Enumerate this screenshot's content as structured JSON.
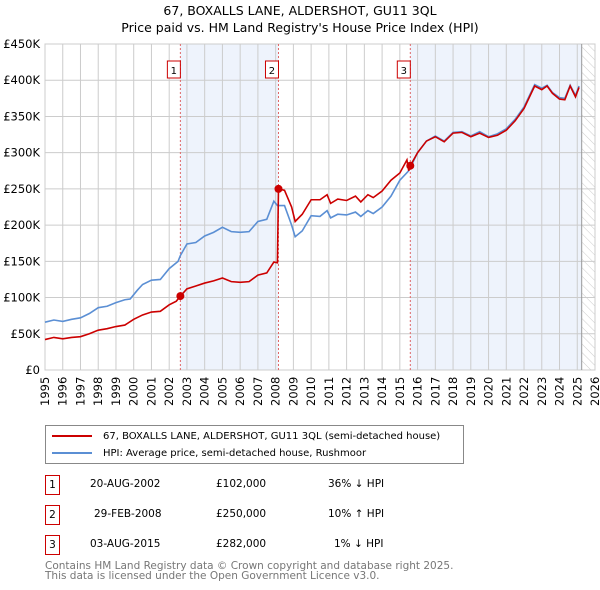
{
  "chart_data": {
    "type": "line",
    "title": "67, BOXALLS LANE, ALDERSHOT, GU11 3QL",
    "subtitle": "Price paid vs. HM Land Registry's House Price Index (HPI)",
    "xlim": [
      1995,
      2026
    ],
    "ylim": [
      0,
      450000
    ],
    "x_ticks": [
      "1995",
      "1996",
      "1997",
      "1998",
      "1999",
      "2000",
      "2001",
      "2002",
      "2003",
      "2004",
      "2005",
      "2006",
      "2007",
      "2008",
      "2009",
      "2010",
      "2011",
      "2012",
      "2013",
      "2014",
      "2015",
      "2016",
      "2017",
      "2018",
      "2019",
      "2020",
      "2021",
      "2022",
      "2023",
      "2024",
      "2025",
      "2026"
    ],
    "y_ticks": [
      "£0",
      "£50K",
      "£100K",
      "£150K",
      "£200K",
      "£250K",
      "£300K",
      "£350K",
      "£400K",
      "£450K"
    ],
    "grid": true,
    "series": [
      {
        "name": "67, BOXALLS LANE, ALDERSHOT, GU11 3QL (semi-detached house)",
        "color": "#cc0000",
        "points": [
          [
            1995,
            42000
          ],
          [
            1995.5,
            45000
          ],
          [
            1996,
            43000
          ],
          [
            1996.5,
            45000
          ],
          [
            1997,
            46000
          ],
          [
            1997.5,
            50000
          ],
          [
            1998,
            55000
          ],
          [
            1998.5,
            57000
          ],
          [
            1999,
            60000
          ],
          [
            1999.5,
            62000
          ],
          [
            2000,
            70000
          ],
          [
            2000.5,
            76000
          ],
          [
            2001,
            80000
          ],
          [
            2001.5,
            81000
          ],
          [
            2002,
            90000
          ],
          [
            2002.4,
            95000
          ],
          [
            2002.63,
            102000
          ],
          [
            2003,
            112000
          ],
          [
            2003.5,
            116000
          ],
          [
            2004,
            120000
          ],
          [
            2004.5,
            123000
          ],
          [
            2005,
            127000
          ],
          [
            2005.5,
            122000
          ],
          [
            2006,
            121000
          ],
          [
            2006.5,
            122000
          ],
          [
            2007,
            131000
          ],
          [
            2007.5,
            134000
          ],
          [
            2007.9,
            149000
          ],
          [
            2008.1,
            148000
          ],
          [
            2008.16,
            250000
          ],
          [
            2008.5,
            248000
          ],
          [
            2008.9,
            225000
          ],
          [
            2009.1,
            205000
          ],
          [
            2009.5,
            215000
          ],
          [
            2010,
            235000
          ],
          [
            2010.5,
            235000
          ],
          [
            2010.9,
            242000
          ],
          [
            2011.1,
            230000
          ],
          [
            2011.5,
            236000
          ],
          [
            2012,
            234000
          ],
          [
            2012.5,
            240000
          ],
          [
            2012.8,
            232000
          ],
          [
            2013.2,
            242000
          ],
          [
            2013.5,
            238000
          ],
          [
            2014,
            247000
          ],
          [
            2014.5,
            262000
          ],
          [
            2015,
            272000
          ],
          [
            2015.4,
            290000
          ],
          [
            2015.5,
            275000
          ],
          [
            2015.59,
            282000
          ],
          [
            2016,
            300000
          ],
          [
            2016.5,
            316000
          ],
          [
            2017,
            322000
          ],
          [
            2017.5,
            315000
          ],
          [
            2018,
            327000
          ],
          [
            2018.5,
            328000
          ],
          [
            2019,
            322000
          ],
          [
            2019.5,
            327000
          ],
          [
            2020,
            321000
          ],
          [
            2020.5,
            324000
          ],
          [
            2021,
            331000
          ],
          [
            2021.5,
            344000
          ],
          [
            2022,
            361000
          ],
          [
            2022.6,
            392000
          ],
          [
            2023,
            387000
          ],
          [
            2023.3,
            392000
          ],
          [
            2023.6,
            382000
          ],
          [
            2024,
            374000
          ],
          [
            2024.3,
            373000
          ],
          [
            2024.6,
            392000
          ],
          [
            2024.9,
            377000
          ],
          [
            2025.1,
            390000
          ]
        ]
      },
      {
        "name": "HPI: Average price, semi-detached house, Rushmoor",
        "color": "#5b8fd4",
        "points": [
          [
            1995,
            66000
          ],
          [
            1995.5,
            69000
          ],
          [
            1996,
            67000
          ],
          [
            1996.5,
            70000
          ],
          [
            1997,
            72000
          ],
          [
            1997.5,
            78000
          ],
          [
            1998,
            86000
          ],
          [
            1998.5,
            88000
          ],
          [
            1999,
            93000
          ],
          [
            1999.5,
            97000
          ],
          [
            1999.8,
            98000
          ],
          [
            2000.2,
            110000
          ],
          [
            2000.5,
            118000
          ],
          [
            2001,
            124000
          ],
          [
            2001.5,
            125000
          ],
          [
            2002,
            140000
          ],
          [
            2002.5,
            150000
          ],
          [
            2002.63,
            158000
          ],
          [
            2003,
            174000
          ],
          [
            2003.5,
            176000
          ],
          [
            2004,
            185000
          ],
          [
            2004.5,
            190000
          ],
          [
            2005,
            197000
          ],
          [
            2005.5,
            191000
          ],
          [
            2006,
            190000
          ],
          [
            2006.5,
            191000
          ],
          [
            2007,
            205000
          ],
          [
            2007.5,
            208000
          ],
          [
            2007.9,
            233000
          ],
          [
            2008.1,
            227000
          ],
          [
            2008.5,
            227000
          ],
          [
            2008.9,
            200000
          ],
          [
            2009.1,
            184000
          ],
          [
            2009.5,
            192000
          ],
          [
            2010,
            213000
          ],
          [
            2010.5,
            212000
          ],
          [
            2010.9,
            220000
          ],
          [
            2011.1,
            210000
          ],
          [
            2011.5,
            215000
          ],
          [
            2012,
            214000
          ],
          [
            2012.5,
            218000
          ],
          [
            2012.8,
            212000
          ],
          [
            2013.2,
            220000
          ],
          [
            2013.5,
            216000
          ],
          [
            2014,
            225000
          ],
          [
            2014.5,
            240000
          ],
          [
            2015,
            262000
          ],
          [
            2015.5,
            275000
          ],
          [
            2016,
            300000
          ],
          [
            2016.5,
            316000
          ],
          [
            2017,
            323000
          ],
          [
            2017.5,
            316000
          ],
          [
            2018,
            328000
          ],
          [
            2018.5,
            329000
          ],
          [
            2019,
            323000
          ],
          [
            2019.5,
            329000
          ],
          [
            2020,
            322000
          ],
          [
            2020.5,
            326000
          ],
          [
            2021,
            333000
          ],
          [
            2021.5,
            346000
          ],
          [
            2022,
            363000
          ],
          [
            2022.6,
            394000
          ],
          [
            2023,
            389000
          ],
          [
            2023.3,
            393000
          ],
          [
            2023.6,
            383000
          ],
          [
            2024,
            376000
          ],
          [
            2024.3,
            375000
          ],
          [
            2024.6,
            393000
          ],
          [
            2024.9,
            379000
          ],
          [
            2025.1,
            392000
          ]
        ]
      }
    ],
    "sales": [
      {
        "label": "1",
        "x": 2002.63,
        "value": 102000,
        "date": "20-AUG-2002",
        "price": "£102,000",
        "hpi": "36% ↓ HPI"
      },
      {
        "label": "2",
        "x": 2008.16,
        "value": 250000,
        "date": "29-FEB-2008",
        "price": "£250,000",
        "hpi": "10% ↑ HPI"
      },
      {
        "label": "3",
        "x": 2015.59,
        "value": 282000,
        "date": "03-AUG-2015",
        "price": "£282,000",
        "hpi": "1% ↓ HPI"
      }
    ],
    "shaded_ranges": [
      [
        2002.63,
        2008.16
      ],
      [
        2015.59,
        2025.25
      ]
    ],
    "forecast_hatch_from": 2025.25
  },
  "footer": {
    "line1": "Contains HM Land Registry data © Crown copyright and database right 2025.",
    "line2": "This data is licensed under the Open Government Licence v3.0."
  }
}
